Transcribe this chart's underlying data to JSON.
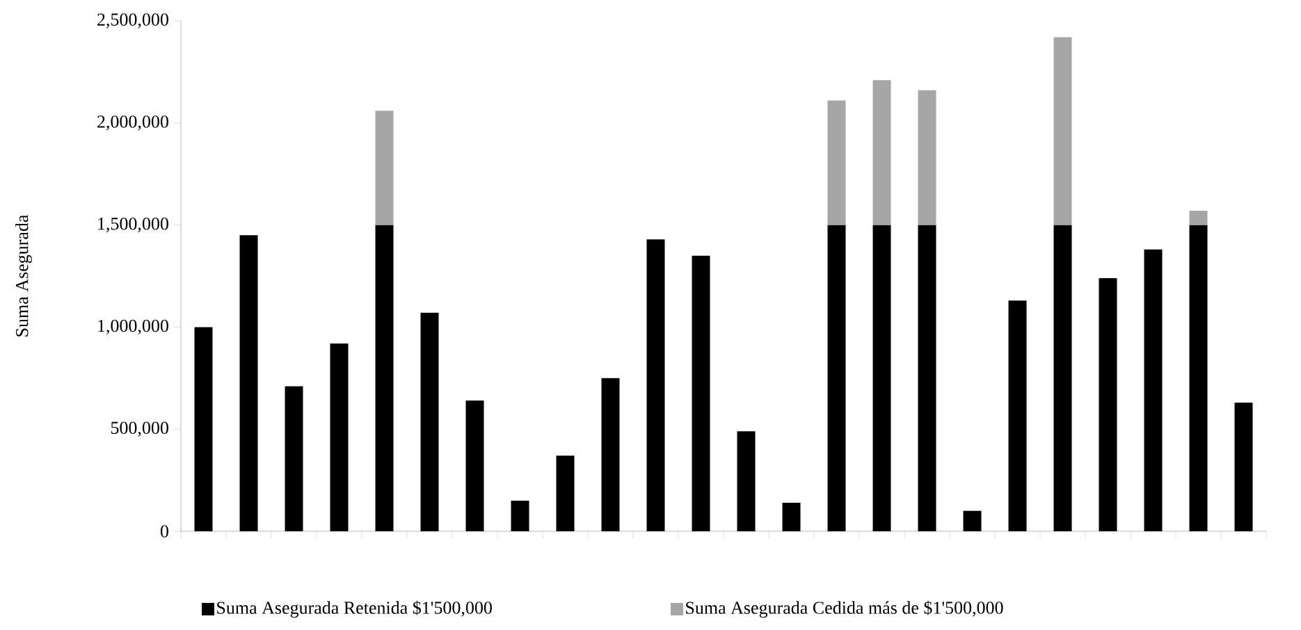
{
  "chart_data": {
    "type": "bar",
    "stacked": true,
    "ylabel": "Suma Asegurada",
    "categories": [
      null,
      null,
      null,
      null,
      null,
      null,
      null,
      null,
      null,
      null,
      null,
      null,
      null,
      null,
      null,
      null,
      null,
      null,
      null,
      null,
      null,
      null,
      null,
      null
    ],
    "series": [
      {
        "name": "Suma Asegurada Retenida $1'500,000",
        "color": "#000000",
        "values": [
          1000000,
          1450000,
          710000,
          920000,
          1500000,
          1070000,
          640000,
          150000,
          370000,
          750000,
          1430000,
          1350000,
          490000,
          140000,
          1500000,
          1500000,
          1500000,
          100000,
          1130000,
          1500000,
          1240000,
          1380000,
          1500000,
          630000
        ]
      },
      {
        "name": "Suma Asegurada Cedida más de $1'500,000",
        "color": "#a6a6a6",
        "values": [
          null,
          null,
          null,
          null,
          560000,
          null,
          null,
          null,
          null,
          null,
          null,
          null,
          null,
          null,
          610000,
          710000,
          660000,
          null,
          null,
          920000,
          null,
          null,
          70000,
          null
        ]
      }
    ],
    "ylim": [
      0,
      2500000
    ],
    "yticks": [
      0,
      {
        "value": 500000,
        "label": "500,000"
      },
      {
        "value": 1000000,
        "label": "1,000,000"
      },
      {
        "value": 1500000,
        "label": "1,500,000"
      },
      {
        "value": 2000000,
        "label": "2,000,000"
      },
      {
        "value": 2500000,
        "label": "2,500,000"
      }
    ],
    "grid": false,
    "legend": "bottom"
  }
}
